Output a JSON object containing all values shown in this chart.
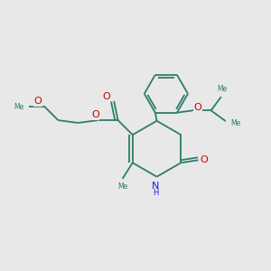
{
  "bg_color": "#e8e8e8",
  "bond_color": "#2d7d6b",
  "o_color": "#cc0000",
  "n_color": "#1a1aff",
  "figsize": [
    3.0,
    3.0
  ],
  "dpi": 100,
  "xlim": [
    0,
    10
  ],
  "ylim": [
    0,
    10
  ]
}
